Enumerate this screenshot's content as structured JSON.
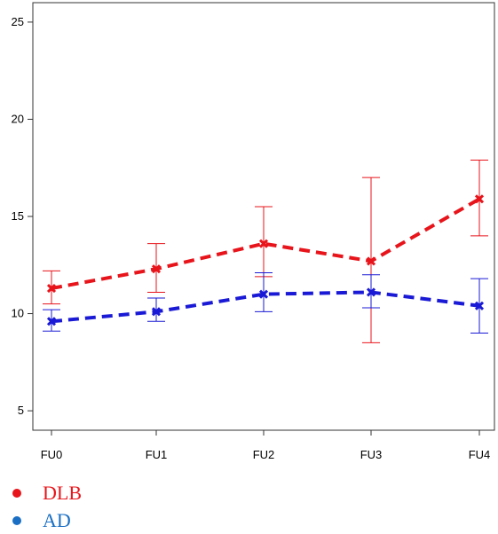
{
  "chart_data": {
    "type": "line",
    "title": "",
    "xlabel": "",
    "ylabel": "",
    "categories": [
      "FU0",
      "FU1",
      "FU2",
      "FU3",
      "FU4"
    ],
    "ylim": [
      4,
      26
    ],
    "yticks": [
      5,
      10,
      15,
      20,
      25
    ],
    "grid": false,
    "legend_position": "bottom-left",
    "series": [
      {
        "name": "DLB",
        "color": "#e8141b",
        "values": [
          11.3,
          12.3,
          13.6,
          12.7,
          15.9
        ],
        "error_low": [
          10.5,
          11.1,
          11.9,
          8.5,
          14.0
        ],
        "error_high": [
          12.2,
          13.6,
          15.5,
          17.0,
          17.9
        ]
      },
      {
        "name": "AD",
        "color": "#1a1ad6",
        "values": [
          9.6,
          10.1,
          11.0,
          11.1,
          10.4
        ],
        "error_low": [
          9.1,
          9.6,
          10.1,
          10.3,
          9.0
        ],
        "error_high": [
          10.2,
          10.8,
          12.1,
          12.0,
          11.8
        ]
      }
    ]
  },
  "legend": {
    "items": [
      {
        "label": "DLB",
        "dot_color": "#e8141b",
        "text_color": "#e8141b"
      },
      {
        "label": "AD",
        "dot_color": "#1a6fc4",
        "text_color": "#1a6fc4"
      }
    ]
  }
}
